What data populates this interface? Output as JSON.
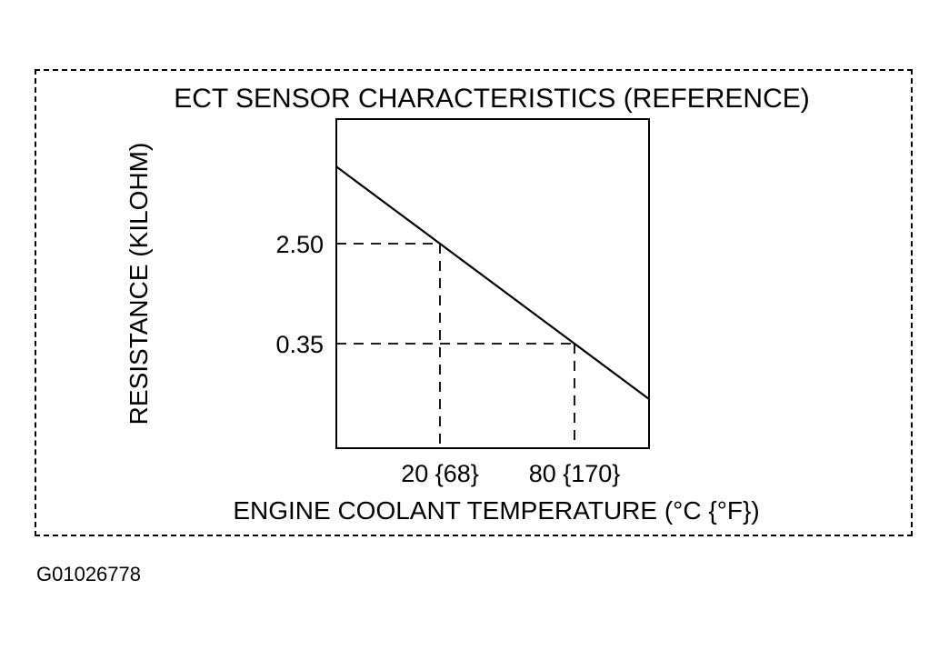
{
  "figure_id": "G01026778",
  "chart_data": {
    "type": "line",
    "title": "ECT SENSOR CHARACTERISTICS (REFERENCE)",
    "xlabel": "ENGINE COOLANT TEMPERATURE (°C {°F})",
    "ylabel": "RESISTANCE (KILOHM)",
    "x_ticks": [
      {
        "value": 20,
        "label": "20 {68}"
      },
      {
        "value": 80,
        "label": "80 {170}"
      }
    ],
    "y_ticks": [
      {
        "value": 2.5,
        "label": "2.50"
      },
      {
        "value": 0.35,
        "label": "0.35"
      }
    ],
    "series": [
      {
        "x": [
          20,
          80
        ],
        "y": [
          2.5,
          0.35
        ]
      }
    ],
    "reference_lines": "dashed",
    "grid": false,
    "legend": "none"
  }
}
